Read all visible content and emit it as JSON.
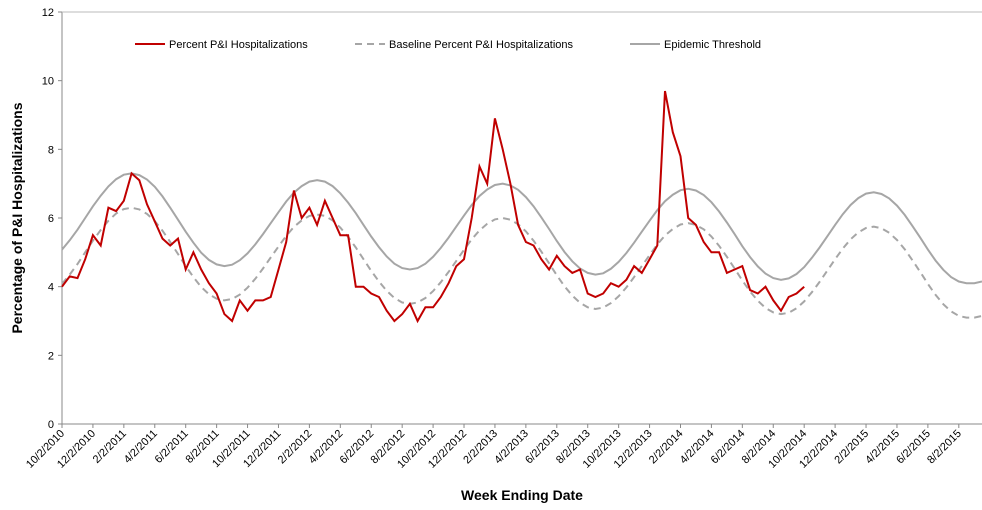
{
  "chart_data": {
    "type": "line",
    "xlabel": "Week Ending Date",
    "ylabel": "Percentage of P&I Hospitalizations",
    "ylim": [
      0,
      12
    ],
    "yticks": [
      0,
      2,
      4,
      6,
      8,
      10,
      12
    ],
    "grid": false,
    "legend": "top",
    "categories": [
      "10/2/2010",
      null,
      null,
      null,
      "12/2/2010",
      null,
      null,
      null,
      "2/2/2011",
      null,
      null,
      null,
      "4/2/2011",
      null,
      null,
      null,
      "6/2/2011",
      null,
      null,
      null,
      "8/2/2011",
      null,
      null,
      null,
      "10/2/2011",
      null,
      null,
      null,
      "12/2/2011",
      null,
      null,
      null,
      "2/2/2012",
      null,
      null,
      null,
      "4/2/2012",
      null,
      null,
      null,
      "6/2/2012",
      null,
      null,
      null,
      "8/2/2012",
      null,
      null,
      null,
      "10/2/2012",
      null,
      null,
      null,
      "12/2/2012",
      null,
      null,
      null,
      "2/2/2013",
      null,
      null,
      null,
      "4/2/2013",
      null,
      null,
      null,
      "6/2/2013",
      null,
      null,
      null,
      "8/2/2013",
      null,
      null,
      null,
      "10/2/2013",
      null,
      null,
      null,
      "12/2/2013",
      null,
      null,
      null,
      "2/2/2014",
      null,
      null,
      null,
      "4/2/2014",
      null,
      null,
      null,
      "6/2/2014",
      null,
      null,
      null,
      "8/2/2014",
      null,
      null,
      null,
      "10/2/2014",
      null,
      null,
      null,
      "12/2/2014",
      null,
      null,
      null,
      "2/2/2015",
      null,
      null,
      null,
      "4/2/2015",
      null,
      null,
      null,
      "6/2/2015",
      null,
      null,
      null,
      "8/2/2015",
      null,
      null,
      null
    ],
    "series": [
      {
        "name": "Percent P&I Hospitalizations",
        "color": "#c00000",
        "style": "solid",
        "values": [
          4.0,
          4.3,
          4.25,
          4.8,
          5.5,
          5.2,
          6.3,
          6.2,
          6.5,
          7.3,
          7.1,
          6.4,
          5.9,
          5.4,
          5.2,
          5.4,
          4.5,
          5.0,
          4.5,
          4.1,
          3.8,
          3.2,
          3.0,
          3.6,
          3.3,
          3.6,
          3.6,
          3.7,
          4.5,
          5.3,
          6.8,
          6.0,
          6.3,
          5.8,
          6.5,
          6.0,
          5.5,
          5.5,
          4.0,
          4.0,
          3.8,
          3.7,
          3.3,
          3.0,
          3.2,
          3.5,
          3.0,
          3.4,
          3.4,
          3.7,
          4.1,
          4.6,
          4.8,
          6.0,
          7.5,
          7.0,
          8.9,
          8.0,
          7.0,
          5.8,
          5.3,
          5.2,
          4.8,
          4.5,
          4.9,
          4.6,
          4.4,
          4.5,
          3.8,
          3.7,
          3.8,
          4.1,
          4.0,
          4.2,
          4.6,
          4.4,
          4.8,
          5.2,
          9.7,
          8.5,
          7.8,
          6.0,
          5.8,
          5.3,
          5.0,
          5.0,
          4.4,
          4.5,
          4.6,
          3.9,
          3.8,
          4.0,
          3.6,
          3.3,
          3.7,
          3.8,
          4.0,
          null,
          null,
          null,
          null,
          null,
          null,
          null,
          null,
          null,
          null,
          null,
          null,
          null,
          null,
          null,
          null,
          null,
          null,
          null,
          null,
          null,
          null,
          null
        ]
      },
      {
        "name": "Baseline Percent P&I Hospitalizations",
        "color": "#a6a6a6",
        "style": "dashed",
        "values": [
          4.08,
          4.35,
          4.66,
          5.0,
          5.34,
          5.65,
          5.92,
          6.13,
          6.26,
          6.3,
          6.25,
          6.12,
          5.91,
          5.63,
          5.3,
          4.95,
          4.6,
          4.28,
          3.99,
          3.78,
          3.65,
          3.6,
          3.64,
          3.77,
          3.97,
          4.23,
          4.53,
          4.85,
          5.17,
          5.48,
          5.74,
          5.93,
          6.06,
          6.1,
          6.06,
          5.93,
          5.72,
          5.45,
          5.14,
          4.8,
          4.46,
          4.15,
          3.88,
          3.67,
          3.54,
          3.5,
          3.54,
          3.67,
          3.87,
          4.13,
          4.43,
          4.75,
          5.07,
          5.38,
          5.64,
          5.83,
          5.96,
          6.0,
          5.95,
          5.82,
          5.61,
          5.34,
          5.02,
          4.68,
          4.33,
          4.01,
          3.74,
          3.53,
          3.4,
          3.35,
          3.39,
          3.52,
          3.72,
          3.98,
          4.28,
          4.6,
          4.92,
          5.23,
          5.49,
          5.68,
          5.81,
          5.85,
          5.8,
          5.67,
          5.46,
          5.19,
          4.87,
          4.53,
          4.18,
          3.86,
          3.59,
          3.38,
          3.25,
          3.2,
          3.24,
          3.37,
          3.57,
          3.84,
          4.14,
          4.47,
          4.8,
          5.11,
          5.38,
          5.58,
          5.71,
          5.75,
          5.7,
          5.57,
          5.36,
          5.09,
          4.77,
          4.43,
          4.08,
          3.76,
          3.49,
          3.28,
          3.15,
          3.1,
          3.1,
          3.15
        ]
      },
      {
        "name": "Epidemic Threshold",
        "color": "#a6a6a6",
        "style": "solid",
        "values": [
          5.08,
          5.35,
          5.66,
          6.0,
          6.34,
          6.65,
          6.92,
          7.13,
          7.26,
          7.3,
          7.25,
          7.12,
          6.91,
          6.63,
          6.3,
          5.95,
          5.6,
          5.28,
          4.99,
          4.78,
          4.65,
          4.6,
          4.64,
          4.77,
          4.97,
          5.23,
          5.53,
          5.85,
          6.17,
          6.48,
          6.74,
          6.93,
          7.06,
          7.1,
          7.06,
          6.93,
          6.72,
          6.45,
          6.14,
          5.8,
          5.46,
          5.15,
          4.88,
          4.67,
          4.54,
          4.5,
          4.54,
          4.67,
          4.87,
          5.13,
          5.43,
          5.75,
          6.07,
          6.38,
          6.64,
          6.83,
          6.96,
          7.0,
          6.95,
          6.82,
          6.61,
          6.34,
          6.02,
          5.68,
          5.33,
          5.01,
          4.74,
          4.53,
          4.4,
          4.35,
          4.39,
          4.52,
          4.72,
          4.98,
          5.28,
          5.6,
          5.92,
          6.23,
          6.49,
          6.68,
          6.81,
          6.85,
          6.8,
          6.67,
          6.46,
          6.19,
          5.87,
          5.53,
          5.18,
          4.86,
          4.59,
          4.38,
          4.25,
          4.2,
          4.24,
          4.37,
          4.57,
          4.84,
          5.14,
          5.47,
          5.8,
          6.11,
          6.38,
          6.58,
          6.71,
          6.75,
          6.7,
          6.57,
          6.36,
          6.09,
          5.77,
          5.43,
          5.08,
          4.76,
          4.49,
          4.28,
          4.15,
          4.1,
          4.1,
          4.15
        ]
      }
    ]
  }
}
